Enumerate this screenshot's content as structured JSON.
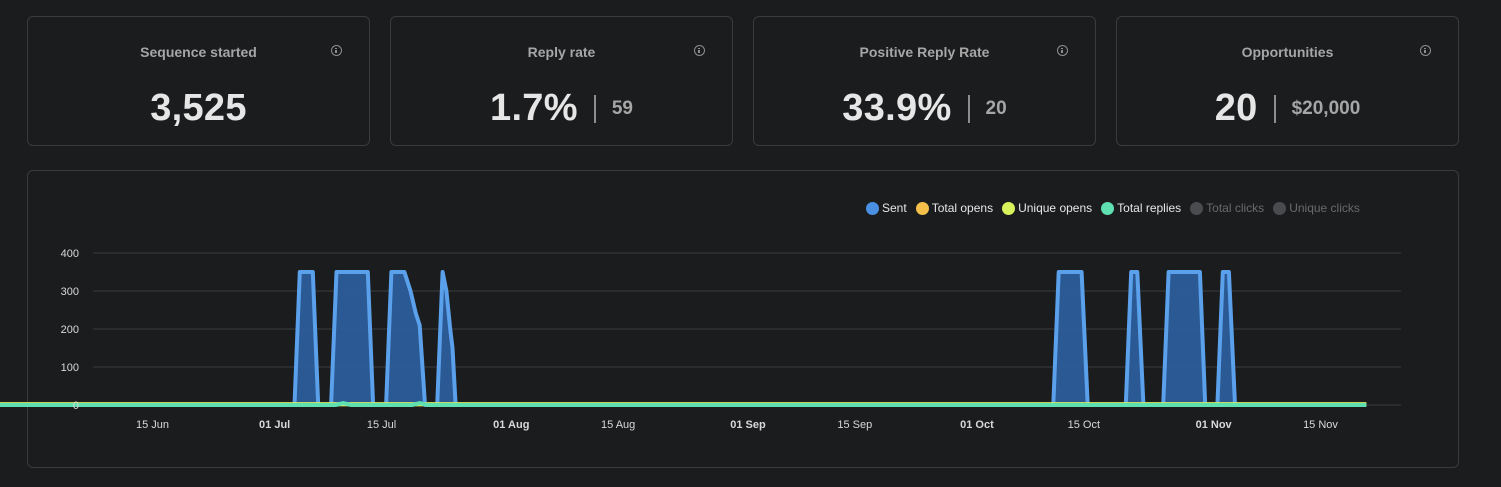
{
  "stats": [
    {
      "title": "Sequence started",
      "value": "3,525",
      "sub": ""
    },
    {
      "title": "Reply rate",
      "value": "1.7%",
      "sub": "59"
    },
    {
      "title": "Positive Reply Rate",
      "value": "33.9%",
      "sub": "20"
    },
    {
      "title": "Opportunities",
      "value": "20",
      "sub": "$20,000"
    }
  ],
  "legend": [
    {
      "label": "Sent",
      "color": "#4a90e2",
      "enabled": true
    },
    {
      "label": "Total opens",
      "color": "#f5c04a",
      "enabled": true
    },
    {
      "label": "Unique opens",
      "color": "#d8f25c",
      "enabled": true
    },
    {
      "label": "Total replies",
      "color": "#5fe0b0",
      "enabled": true
    },
    {
      "label": "Total clicks",
      "color": "#4a4b4e",
      "enabled": false
    },
    {
      "label": "Unique clicks",
      "color": "#4a4b4e",
      "enabled": false
    }
  ],
  "chart_data": {
    "type": "area",
    "x_tick_labels": [
      "15 Jun",
      "01 Jul",
      "15 Jul",
      "01 Aug",
      "15 Aug",
      "01 Sep",
      "15 Sep",
      "01 Oct",
      "15 Oct",
      "01 Nov",
      "15 Nov"
    ],
    "x_tick_bold": [
      false,
      true,
      false,
      true,
      false,
      true,
      false,
      true,
      false,
      true,
      false
    ],
    "y_ticks": [
      0,
      100,
      200,
      300,
      400
    ],
    "ylim": [
      0,
      400
    ],
    "x_range_days": [
      0,
      180
    ],
    "series": [
      {
        "name": "Sent",
        "color": "#4a90e2",
        "points": [
          [
            0,
            0
          ],
          [
            39.6,
            0
          ],
          [
            40.3,
            350
          ],
          [
            42.0,
            350
          ],
          [
            42.7,
            0
          ],
          [
            44.4,
            0
          ],
          [
            45.1,
            350
          ],
          [
            49.2,
            350
          ],
          [
            49.9,
            0
          ],
          [
            51.6,
            0
          ],
          [
            52.3,
            350
          ],
          [
            54.0,
            350
          ],
          [
            54.8,
            300
          ],
          [
            55.5,
            240
          ],
          [
            56.0,
            210
          ],
          [
            56.7,
            0
          ],
          [
            58.3,
            0
          ],
          [
            59.0,
            350
          ],
          [
            59.5,
            300
          ],
          [
            60.0,
            200
          ],
          [
            60.3,
            150
          ],
          [
            60.7,
            0
          ],
          [
            139.0,
            0
          ],
          [
            139.7,
            350
          ],
          [
            142.7,
            350
          ],
          [
            143.5,
            0
          ],
          [
            148.5,
            0
          ],
          [
            149.2,
            350
          ],
          [
            150.0,
            350
          ],
          [
            150.8,
            0
          ],
          [
            153.4,
            0
          ],
          [
            154.1,
            350
          ],
          [
            158.2,
            350
          ],
          [
            158.9,
            0
          ],
          [
            160.5,
            0
          ],
          [
            161.2,
            350
          ],
          [
            162.0,
            350
          ],
          [
            162.8,
            0
          ],
          [
            180,
            0
          ]
        ]
      },
      {
        "name": "Total opens",
        "color": "#f5c04a",
        "points": [
          [
            0,
            2
          ],
          [
            180,
            2
          ]
        ]
      },
      {
        "name": "Unique opens",
        "color": "#d8f25c",
        "points": [
          [
            0,
            2
          ],
          [
            180,
            2
          ]
        ]
      },
      {
        "name": "Total replies",
        "color": "#5fe0b0",
        "points": [
          [
            0,
            0
          ],
          [
            45.0,
            0
          ],
          [
            46.0,
            5
          ],
          [
            47.0,
            0
          ],
          [
            55.0,
            0
          ],
          [
            56.0,
            5
          ],
          [
            57.0,
            0
          ],
          [
            180,
            0
          ]
        ]
      }
    ]
  }
}
